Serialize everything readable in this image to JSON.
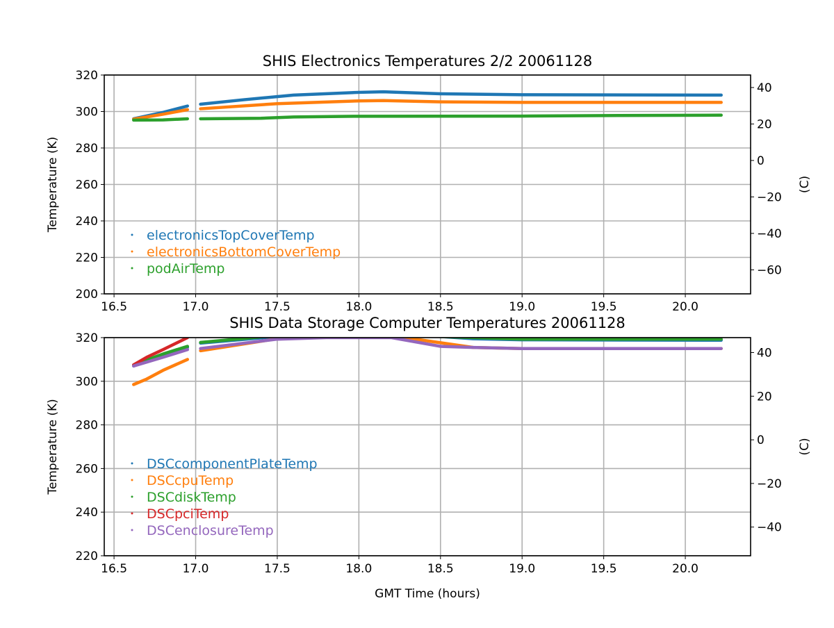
{
  "chart_data": [
    {
      "type": "line",
      "title": "SHIS Electronics Temperatures 2/2 20061128",
      "xlabel": "",
      "ylabel": "Temperature (K)",
      "ylabel_right": "(C)",
      "xlim": [
        16.44,
        20.4
      ],
      "ylim": [
        200,
        320
      ],
      "xticks": [
        "16.5",
        "17.0",
        "17.5",
        "18.0",
        "18.5",
        "19.0",
        "19.5",
        "20.0"
      ],
      "yticks": [
        "200",
        "220",
        "240",
        "260",
        "280",
        "300",
        "320"
      ],
      "yticks_right": [
        "40",
        "20",
        "0",
        "−20",
        "−40",
        "−60"
      ],
      "grid": true,
      "legend": "lower-left",
      "series": [
        {
          "name": "electronicsTopCoverTemp",
          "color": "#1f77b4",
          "segments": [
            [
              [
                16.62,
                296
              ],
              [
                16.8,
                299.5
              ],
              [
                16.95,
                303
              ]
            ],
            [
              [
                17.03,
                304
              ],
              [
                17.3,
                306.5
              ],
              [
                17.6,
                309
              ],
              [
                18.0,
                310.5
              ],
              [
                18.15,
                310.8
              ],
              [
                18.5,
                309.7
              ],
              [
                19.0,
                309.2
              ],
              [
                20.22,
                309
              ]
            ]
          ]
        },
        {
          "name": "electronicsBottomCoverTemp",
          "color": "#ff7f0e",
          "segments": [
            [
              [
                16.62,
                295.8
              ],
              [
                16.8,
                298.5
              ],
              [
                16.95,
                301
              ]
            ],
            [
              [
                17.03,
                301.5
              ],
              [
                17.5,
                304.3
              ],
              [
                18.0,
                305.8
              ],
              [
                18.15,
                306
              ],
              [
                18.5,
                305.3
              ],
              [
                19.0,
                305
              ],
              [
                20.22,
                305
              ]
            ]
          ]
        },
        {
          "name": "podAirTemp",
          "color": "#2ca02c",
          "segments": [
            [
              [
                16.62,
                295.3
              ],
              [
                16.8,
                295.4
              ],
              [
                16.95,
                296
              ]
            ],
            [
              [
                17.03,
                296
              ],
              [
                17.4,
                296.3
              ],
              [
                17.6,
                297
              ],
              [
                18.0,
                297.4
              ],
              [
                19.0,
                297.5
              ],
              [
                19.6,
                297.8
              ],
              [
                20.22,
                298
              ]
            ]
          ]
        }
      ]
    },
    {
      "type": "line",
      "title": "SHIS Data Storage Computer Temperatures 20061128",
      "xlabel": "GMT Time (hours)",
      "ylabel": "Temperature (K)",
      "ylabel_right": "(C)",
      "xlim": [
        16.44,
        20.4
      ],
      "ylim": [
        220,
        320
      ],
      "xticks": [
        "16.5",
        "17.0",
        "17.5",
        "18.0",
        "18.5",
        "19.0",
        "19.5",
        "20.0"
      ],
      "yticks": [
        "220",
        "240",
        "260",
        "280",
        "300",
        "320"
      ],
      "yticks_right": [
        "40",
        "20",
        "0",
        "−20",
        "−40"
      ],
      "grid": true,
      "legend": "lower-left",
      "series": [
        {
          "name": "DSCcomponentPlateTemp",
          "color": "#1f77b4",
          "segments": [
            [
              [
                16.62,
                307
              ],
              [
                16.8,
                312
              ],
              [
                16.95,
                315.5
              ]
            ],
            [
              [
                17.03,
                317.5
              ],
              [
                17.5,
                320.5
              ],
              [
                18.0,
                322
              ],
              [
                18.4,
                321
              ],
              [
                18.7,
                319.5
              ],
              [
                19.0,
                319
              ],
              [
                20.22,
                318.8
              ]
            ]
          ]
        },
        {
          "name": "DSCcpuTemp",
          "color": "#ff7f0e",
          "segments": [
            [
              [
                16.62,
                298.5
              ],
              [
                16.7,
                301
              ],
              [
                16.8,
                305
              ],
              [
                16.95,
                310
              ]
            ],
            [
              [
                17.03,
                314
              ],
              [
                17.5,
                319.5
              ],
              [
                18.0,
                322
              ],
              [
                18.3,
                319.8
              ],
              [
                18.7,
                315.5
              ],
              [
                19.0,
                315
              ],
              [
                20.22,
                315
              ]
            ]
          ]
        },
        {
          "name": "DSCdiskTemp",
          "color": "#2ca02c",
          "segments": [
            [
              [
                16.62,
                307.5
              ],
              [
                16.8,
                312.5
              ],
              [
                16.95,
                316
              ]
            ],
            [
              [
                17.03,
                317.8
              ],
              [
                17.5,
                321
              ],
              [
                18.0,
                322.5
              ],
              [
                18.5,
                320.5
              ],
              [
                19.0,
                319.3
              ],
              [
                20.22,
                319.3
              ]
            ]
          ]
        },
        {
          "name": "DSCpciTemp",
          "color": "#d62728",
          "segments": [
            [
              [
                16.62,
                307.5
              ],
              [
                16.7,
                311
              ],
              [
                16.8,
                314.5
              ],
              [
                16.95,
                320
              ]
            ],
            [
              [
                17.03,
                322
              ],
              [
                18.0,
                325
              ],
              [
                18.5,
                323
              ],
              [
                20.22,
                322
              ]
            ]
          ]
        },
        {
          "name": "DSCenclosureTemp",
          "color": "#9467bd",
          "segments": [
            [
              [
                16.62,
                307
              ],
              [
                16.8,
                311
              ],
              [
                16.95,
                314.5
              ]
            ],
            [
              [
                17.03,
                315
              ],
              [
                17.5,
                319.3
              ],
              [
                17.8,
                320
              ],
              [
                18.2,
                320
              ],
              [
                18.5,
                316
              ],
              [
                18.7,
                315.5
              ],
              [
                19.0,
                315
              ],
              [
                20.22,
                315
              ]
            ]
          ]
        }
      ]
    }
  ]
}
